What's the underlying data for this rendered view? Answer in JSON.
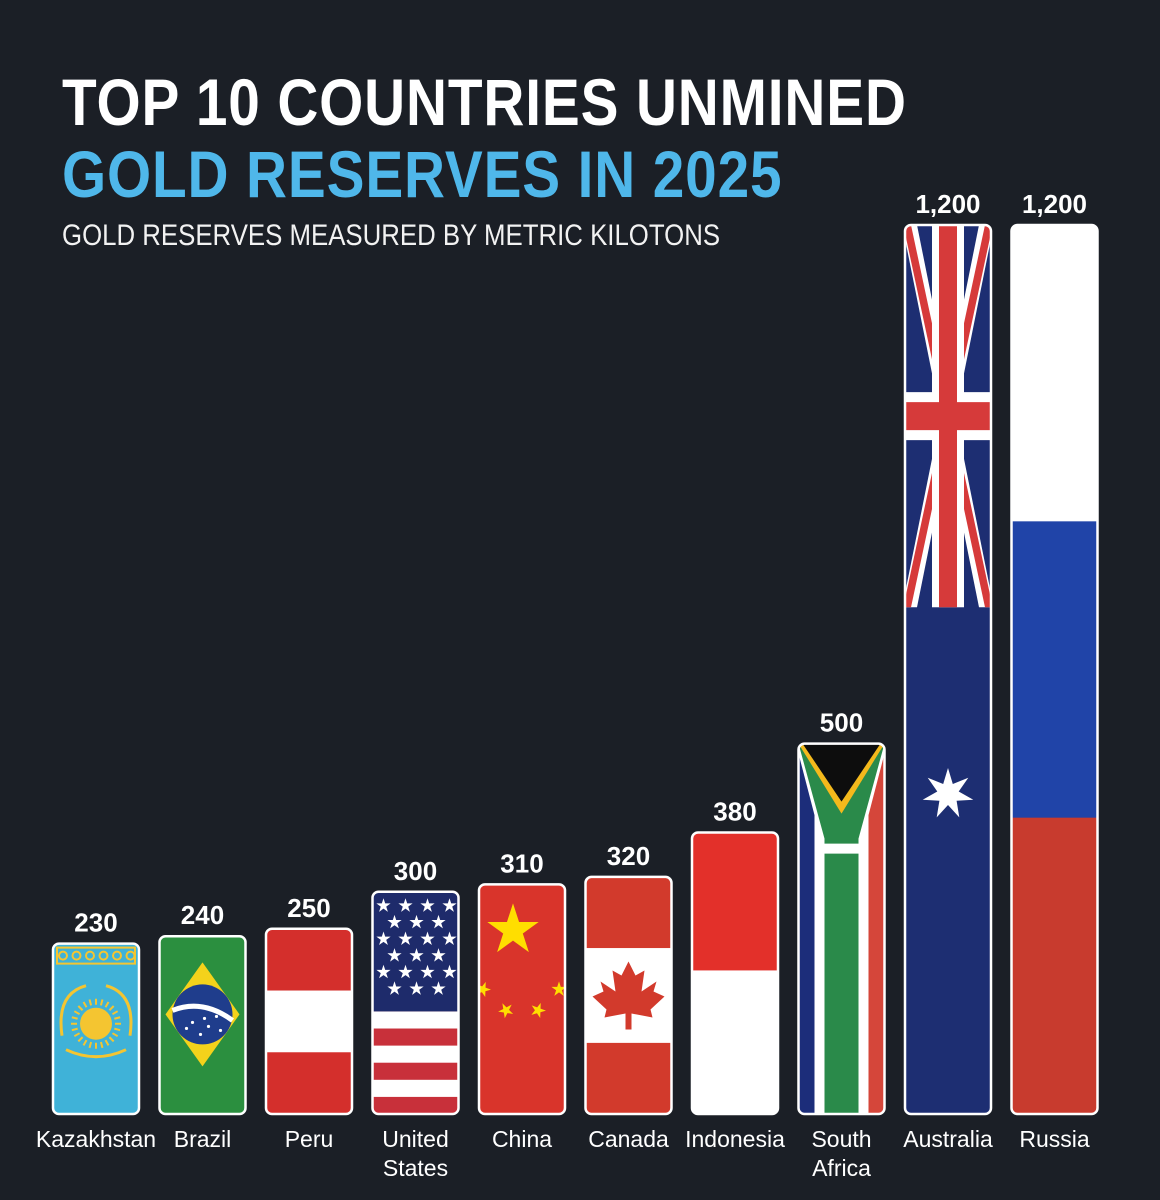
{
  "header": {
    "title_line1": "TOP 10 COUNTRIES UNMINED",
    "title_line2": "GOLD RESERVES IN 2025",
    "subtitle": "GOLD RESERVES MEASURED BY METRIC KILOTONS"
  },
  "colors": {
    "background": "#1b1f26",
    "title": "#ffffff",
    "accent": "#4fb7ea"
  },
  "chart_data": {
    "type": "bar",
    "title": "TOP 10 COUNTRIES UNMINED GOLD RESERVES IN 2025",
    "subtitle": "GOLD RESERVES MEASURED BY METRIC KILOTONS",
    "xlabel": "",
    "ylabel": "",
    "ylim": [
      0,
      1200
    ],
    "grid": false,
    "value_labels": [
      "230",
      "240",
      "250",
      "300",
      "310",
      "320",
      "380",
      "500",
      "1,200",
      "1,200"
    ],
    "categories": [
      [
        "Kazakhstan"
      ],
      [
        "Brazil"
      ],
      [
        "Peru"
      ],
      [
        "United",
        "States"
      ],
      [
        "China"
      ],
      [
        "Canada"
      ],
      [
        "Indonesia"
      ],
      [
        "South",
        "Africa"
      ],
      [
        "Australia"
      ],
      [
        "Russia"
      ]
    ],
    "values": [
      230,
      240,
      250,
      300,
      310,
      320,
      380,
      500,
      1200,
      1200
    ],
    "bar_fill": "flag of each country"
  }
}
